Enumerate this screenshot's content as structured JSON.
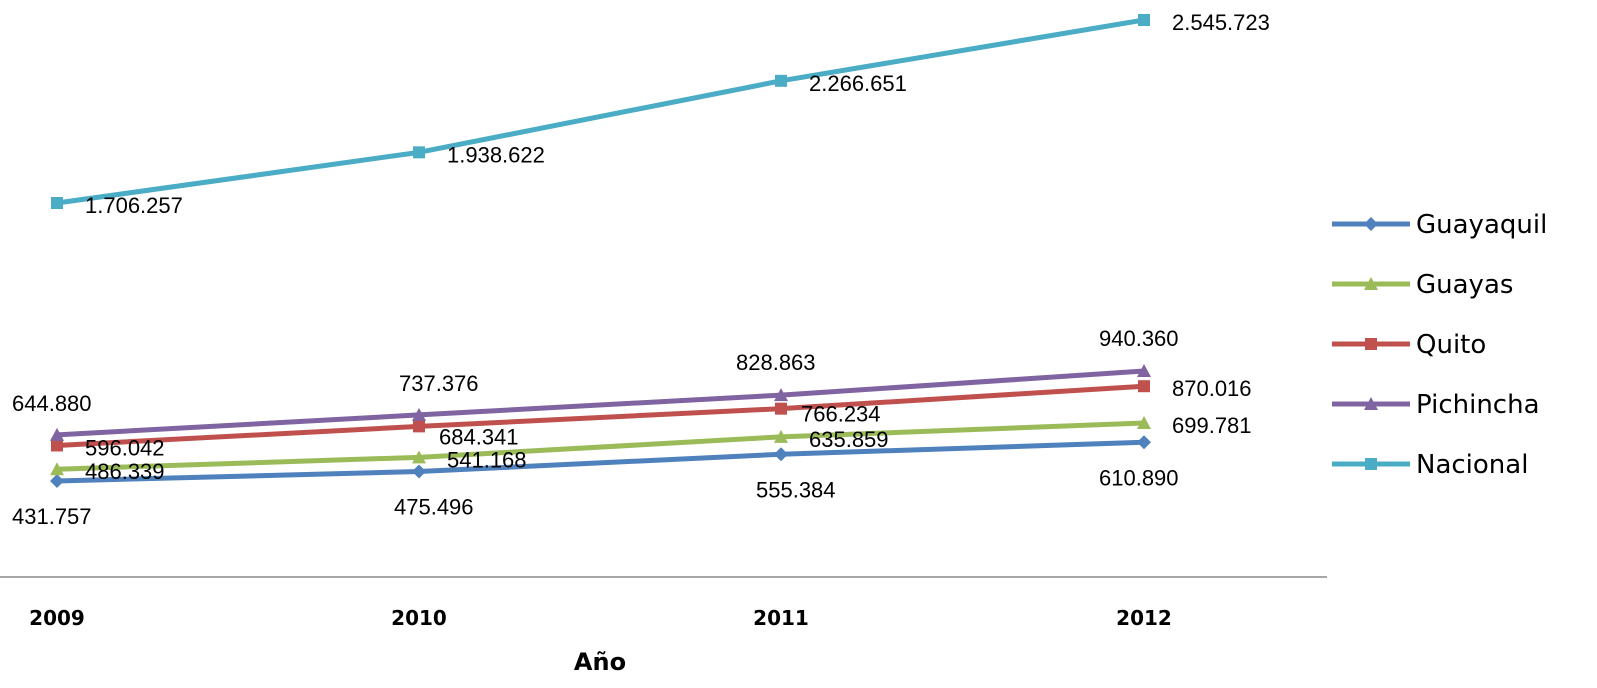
{
  "chart_data": {
    "type": "line",
    "title": "",
    "xlabel": "Año",
    "ylabel": "",
    "categories": [
      "2009",
      "2010",
      "2011",
      "2012"
    ],
    "legend_position": "right",
    "grid": false,
    "series": [
      {
        "name": "Guayaquil",
        "color": "#4F81BD",
        "marker": "diamond",
        "values": [
          431757,
          475496,
          555384,
          610890
        ],
        "labels": [
          "431.757",
          "475.496",
          "555.384",
          "610.890"
        ]
      },
      {
        "name": "Guayas",
        "color": "#9BBB59",
        "marker": "triangle",
        "values": [
          486339,
          541168,
          635859,
          699781
        ],
        "labels": [
          "486.339",
          "541.168",
          "635.859",
          "699.781"
        ]
      },
      {
        "name": "Quito",
        "color": "#C0504D",
        "marker": "square",
        "values": [
          596042,
          684341,
          766234,
          870016
        ],
        "labels": [
          "596.042",
          "684.341",
          "766.234",
          "870.016"
        ]
      },
      {
        "name": "Pichincha",
        "color": "#8064A2",
        "marker": "triangle",
        "values": [
          644880,
          737376,
          828863,
          940360
        ],
        "labels": [
          "644.880",
          "737.376",
          "828.863",
          "940.360"
        ]
      },
      {
        "name": "Nacional",
        "color": "#4BACC6",
        "marker": "square",
        "values": [
          1706257,
          1938622,
          2266651,
          2545723
        ],
        "labels": [
          "1.706.257",
          "1.938.622",
          "2.266.651",
          "2.545.723"
        ]
      }
    ]
  }
}
